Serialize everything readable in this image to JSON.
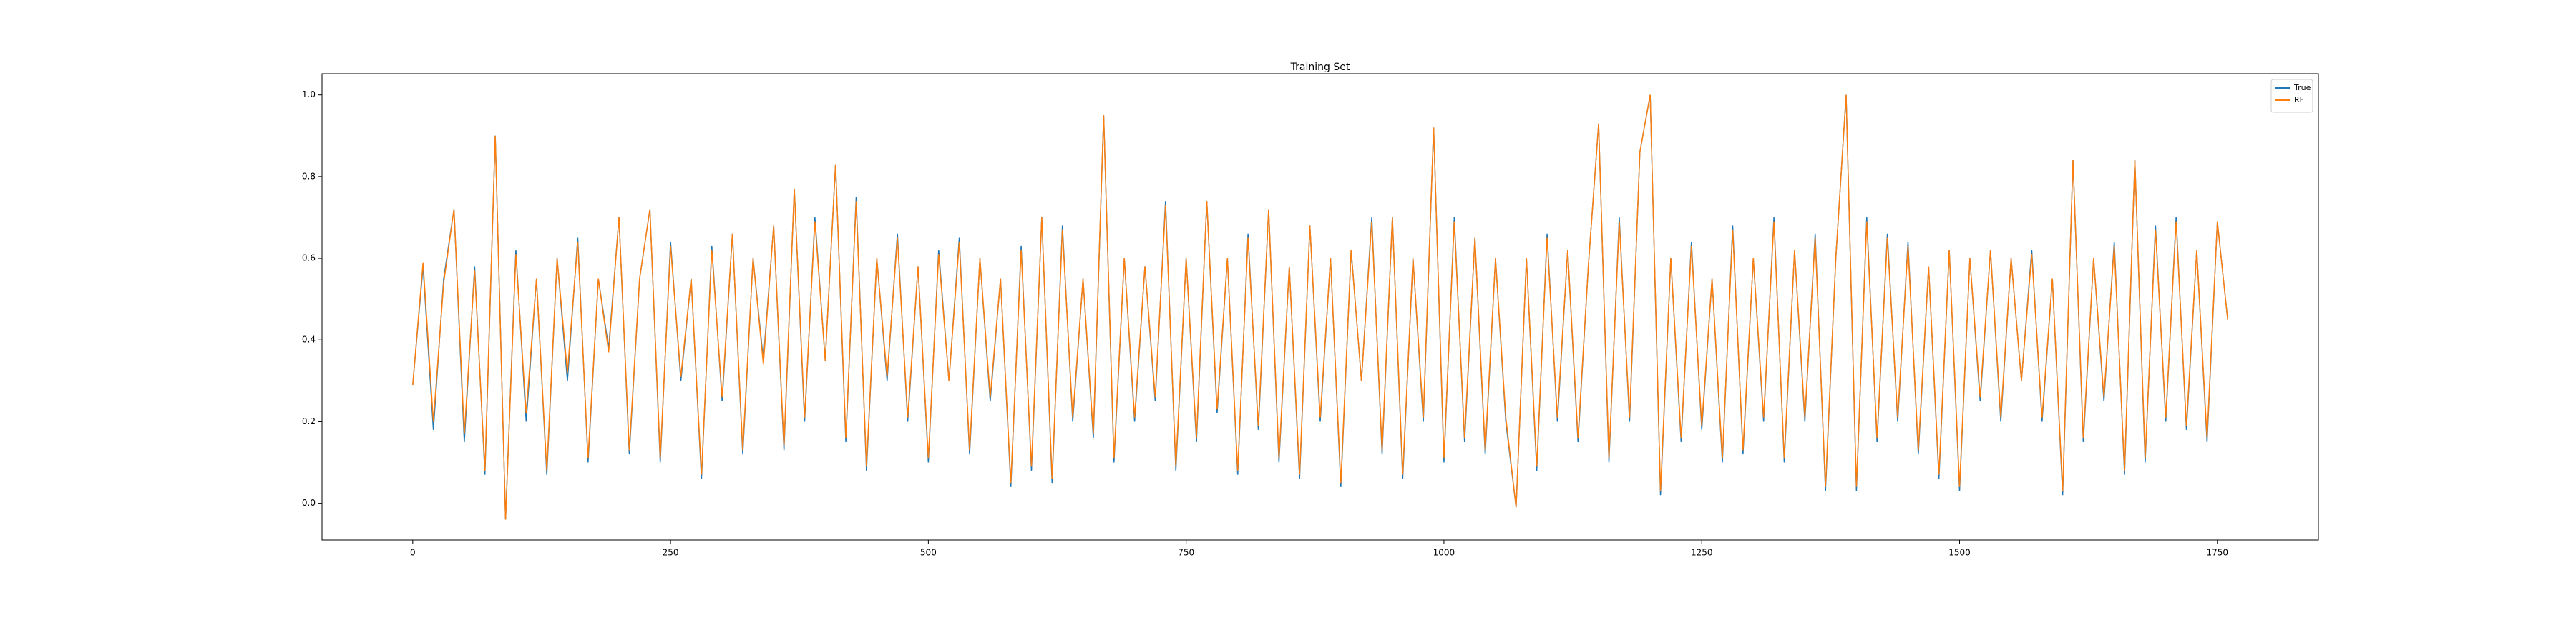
{
  "chart_data": {
    "type": "line",
    "title": "Training Set",
    "x": [
      0,
      10,
      20,
      30,
      40,
      50,
      60,
      70,
      80,
      90,
      100,
      110,
      120,
      130,
      140,
      150,
      160,
      170,
      180,
      190,
      200,
      210,
      220,
      230,
      240,
      250,
      260,
      270,
      280,
      290,
      300,
      310,
      320,
      330,
      340,
      350,
      360,
      370,
      380,
      390,
      400,
      410,
      420,
      430,
      440,
      450,
      460,
      470,
      480,
      490,
      500,
      510,
      520,
      530,
      540,
      550,
      560,
      570,
      580,
      590,
      600,
      610,
      620,
      630,
      640,
      650,
      660,
      670,
      680,
      690,
      700,
      710,
      720,
      730,
      740,
      750,
      760,
      770,
      780,
      790,
      800,
      810,
      820,
      830,
      840,
      850,
      860,
      870,
      880,
      890,
      900,
      910,
      920,
      930,
      940,
      950,
      960,
      970,
      980,
      990,
      1000,
      1010,
      1020,
      1030,
      1040,
      1050,
      1060,
      1070,
      1080,
      1090,
      1100,
      1110,
      1120,
      1130,
      1140,
      1150,
      1160,
      1170,
      1180,
      1190,
      1200,
      1210,
      1220,
      1230,
      1240,
      1250,
      1260,
      1270,
      1280,
      1290,
      1300,
      1310,
      1320,
      1330,
      1340,
      1350,
      1360,
      1370,
      1380,
      1390,
      1400,
      1410,
      1420,
      1430,
      1440,
      1450,
      1460,
      1470,
      1480,
      1490,
      1500,
      1510,
      1520,
      1530,
      1540,
      1550,
      1560,
      1570,
      1580,
      1590,
      1600,
      1610,
      1620,
      1630,
      1640,
      1650,
      1660,
      1670,
      1680,
      1690,
      1700,
      1710,
      1720,
      1730,
      1740,
      1750,
      1760
    ],
    "series": [
      {
        "name": "True",
        "color": "#1f77b4",
        "values": [
          0.29,
          0.58,
          0.18,
          0.55,
          0.72,
          0.15,
          0.58,
          0.07,
          0.9,
          -0.04,
          0.62,
          0.2,
          0.55,
          0.07,
          0.6,
          0.3,
          0.65,
          0.1,
          0.55,
          0.38,
          0.7,
          0.12,
          0.55,
          0.72,
          0.1,
          0.64,
          0.3,
          0.55,
          0.06,
          0.63,
          0.25,
          0.66,
          0.12,
          0.6,
          0.35,
          0.68,
          0.13,
          0.77,
          0.2,
          0.7,
          0.35,
          0.83,
          0.15,
          0.75,
          0.08,
          0.6,
          0.3,
          0.66,
          0.2,
          0.58,
          0.1,
          0.62,
          0.3,
          0.65,
          0.12,
          0.6,
          0.25,
          0.55,
          0.04,
          0.63,
          0.08,
          0.7,
          0.05,
          0.68,
          0.2,
          0.55,
          0.16,
          0.95,
          0.1,
          0.6,
          0.2,
          0.58,
          0.25,
          0.74,
          0.08,
          0.6,
          0.15,
          0.74,
          0.22,
          0.6,
          0.07,
          0.66,
          0.18,
          0.72,
          0.1,
          0.58,
          0.06,
          0.68,
          0.2,
          0.6,
          0.04,
          0.62,
          0.3,
          0.7,
          0.12,
          0.7,
          0.06,
          0.6,
          0.2,
          0.92,
          0.1,
          0.7,
          0.15,
          0.65,
          0.12,
          0.6,
          0.2,
          -0.01,
          0.6,
          0.08,
          0.66,
          0.2,
          0.62,
          0.15,
          0.58,
          0.93,
          0.1,
          0.7,
          0.2,
          0.86,
          1.0,
          0.02,
          0.6,
          0.15,
          0.64,
          0.18,
          0.55,
          0.1,
          0.68,
          0.12,
          0.6,
          0.2,
          0.7,
          0.1,
          0.62,
          0.2,
          0.66,
          0.03,
          0.6,
          1.0,
          0.03,
          0.7,
          0.15,
          0.66,
          0.2,
          0.64,
          0.12,
          0.58,
          0.06,
          0.62,
          0.03,
          0.6,
          0.25,
          0.62,
          0.2,
          0.6,
          0.3,
          0.62,
          0.2,
          0.55,
          0.02,
          0.84,
          0.15,
          0.6,
          0.25,
          0.64,
          0.07,
          0.84,
          0.1,
          0.68,
          0.2,
          0.7,
          0.18,
          0.62,
          0.15,
          0.69,
          0.45
        ]
      },
      {
        "name": "RF",
        "color": "#ff7f0e",
        "values": [
          0.29,
          0.59,
          0.2,
          0.54,
          0.72,
          0.17,
          0.57,
          0.08,
          0.9,
          -0.04,
          0.61,
          0.22,
          0.55,
          0.08,
          0.6,
          0.32,
          0.64,
          0.11,
          0.55,
          0.37,
          0.7,
          0.13,
          0.55,
          0.72,
          0.11,
          0.63,
          0.31,
          0.55,
          0.07,
          0.62,
          0.26,
          0.66,
          0.13,
          0.6,
          0.34,
          0.68,
          0.14,
          0.77,
          0.21,
          0.69,
          0.35,
          0.83,
          0.16,
          0.74,
          0.09,
          0.6,
          0.31,
          0.65,
          0.21,
          0.58,
          0.11,
          0.61,
          0.3,
          0.64,
          0.13,
          0.6,
          0.26,
          0.55,
          0.05,
          0.62,
          0.09,
          0.7,
          0.06,
          0.67,
          0.21,
          0.55,
          0.17,
          0.95,
          0.11,
          0.6,
          0.21,
          0.58,
          0.26,
          0.73,
          0.09,
          0.6,
          0.16,
          0.74,
          0.23,
          0.6,
          0.08,
          0.65,
          0.19,
          0.72,
          0.11,
          0.58,
          0.07,
          0.68,
          0.21,
          0.6,
          0.05,
          0.62,
          0.3,
          0.69,
          0.13,
          0.7,
          0.07,
          0.6,
          0.21,
          0.92,
          0.11,
          0.69,
          0.16,
          0.65,
          0.13,
          0.6,
          0.21,
          -0.01,
          0.6,
          0.09,
          0.65,
          0.21,
          0.62,
          0.16,
          0.58,
          0.93,
          0.11,
          0.69,
          0.21,
          0.86,
          1.0,
          0.03,
          0.6,
          0.16,
          0.63,
          0.19,
          0.55,
          0.11,
          0.67,
          0.13,
          0.6,
          0.21,
          0.69,
          0.11,
          0.62,
          0.21,
          0.65,
          0.04,
          0.6,
          1.0,
          0.04,
          0.69,
          0.16,
          0.65,
          0.21,
          0.63,
          0.13,
          0.58,
          0.07,
          0.62,
          0.04,
          0.6,
          0.26,
          0.62,
          0.21,
          0.6,
          0.3,
          0.61,
          0.21,
          0.55,
          0.03,
          0.84,
          0.16,
          0.6,
          0.26,
          0.63,
          0.08,
          0.84,
          0.11,
          0.67,
          0.21,
          0.69,
          0.19,
          0.62,
          0.16,
          0.69,
          0.45
        ]
      }
    ],
    "xlim": [
      -88,
      1848
    ],
    "xticks": [
      0,
      250,
      500,
      750,
      1000,
      1250,
      1500,
      1750
    ],
    "ylim": [
      -0.09,
      1.052
    ],
    "yticks": [
      {
        "value": 0,
        "label": "0.0"
      },
      0.2,
      0.4,
      0.6,
      0.8,
      {
        "value": 1,
        "label": "1.0"
      }
    ],
    "legend": "upper right",
    "grid": false
  }
}
